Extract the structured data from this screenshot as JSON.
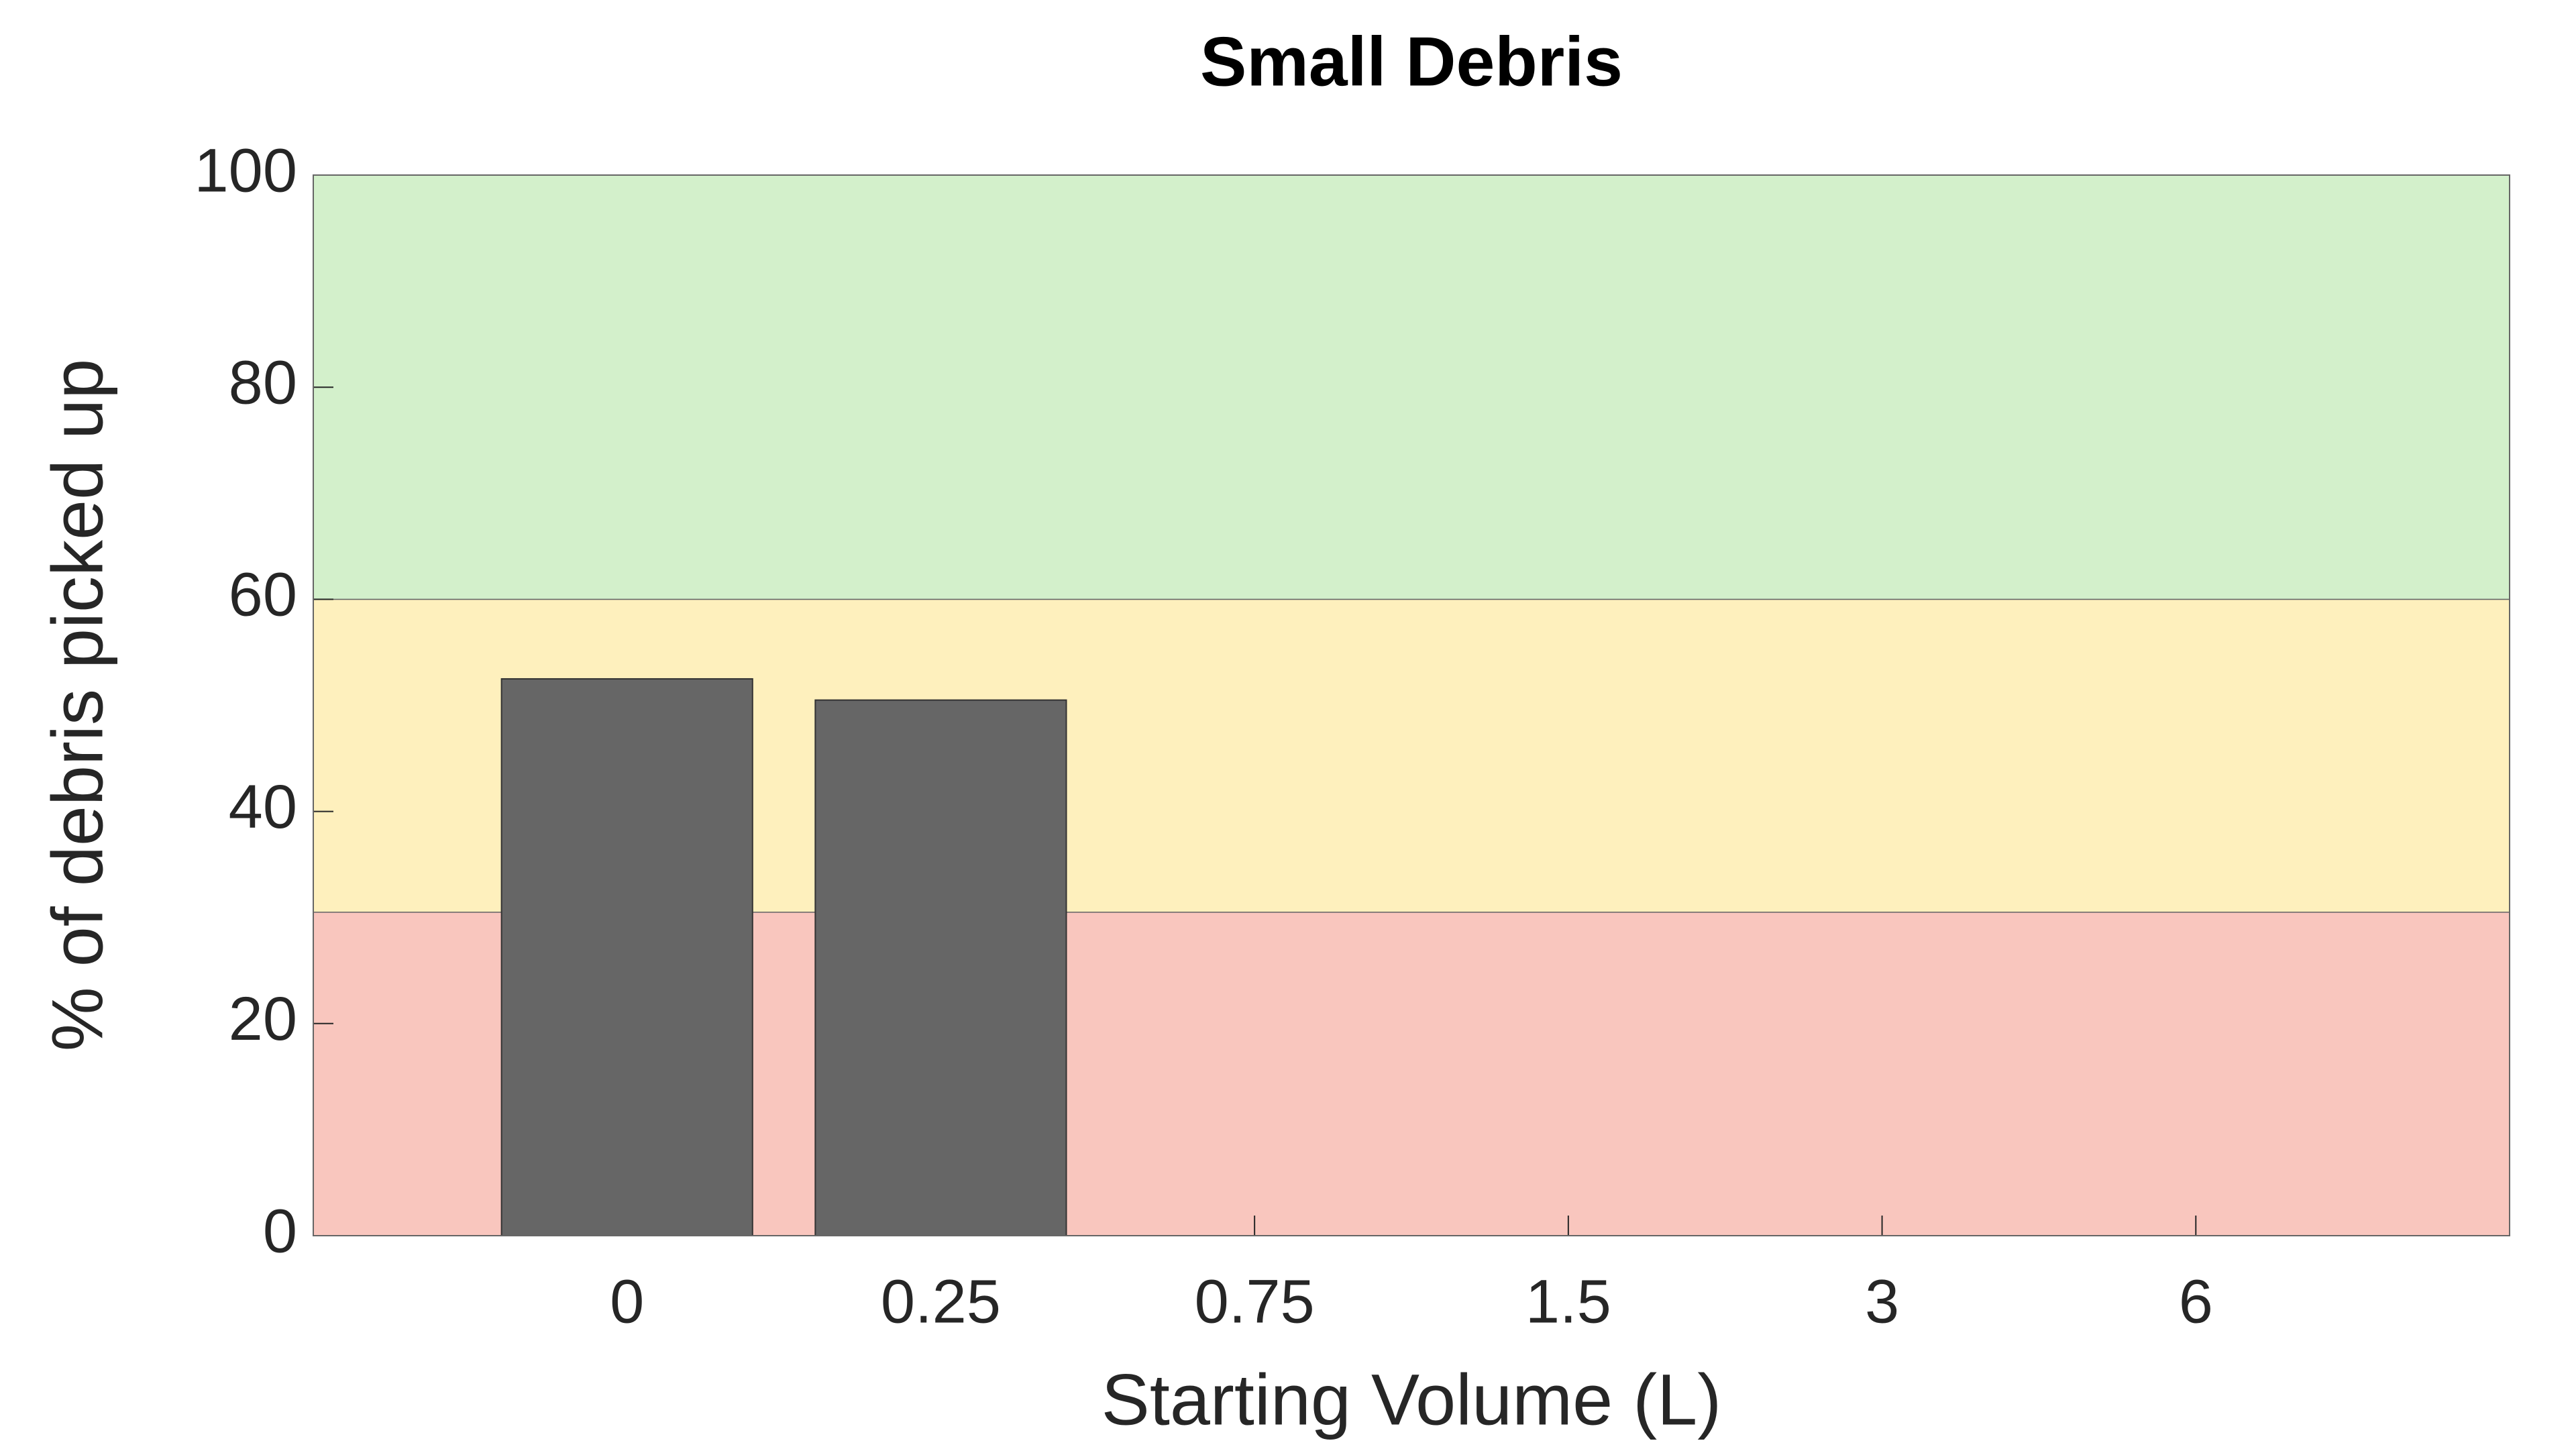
{
  "chart_data": {
    "type": "bar",
    "title": "Small Debris",
    "xlabel": "Starting Volume (L)",
    "ylabel": "% of debris picked up",
    "categories": [
      "0",
      "0.25",
      "0.75",
      "1.5",
      "3",
      "6"
    ],
    "values": [
      52.5,
      50.5,
      null,
      null,
      null,
      null
    ],
    "color": "#666666",
    "ylim": [
      0,
      100
    ],
    "yticks": [
      0,
      20,
      40,
      60,
      80,
      100
    ],
    "bands": [
      {
        "from": 0,
        "to": 30.5,
        "color": "#f9c6be"
      },
      {
        "from": 30.5,
        "to": 60,
        "color": "#fef0bd"
      },
      {
        "from": 60,
        "to": 100,
        "color": "#d3f0cb"
      }
    ]
  }
}
